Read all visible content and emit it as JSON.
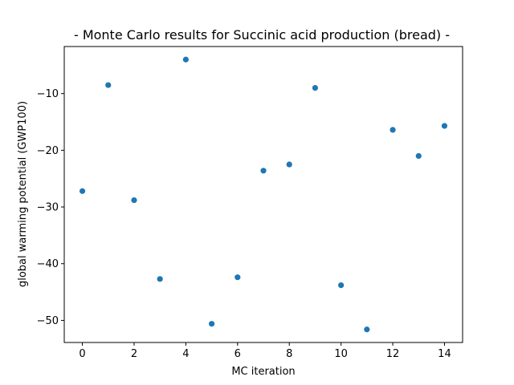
{
  "chart_data": {
    "type": "scatter",
    "title": "- Monte Carlo results for Succinic acid production (bread) -",
    "xlabel": "MC iteration",
    "ylabel": "global warming potential (GWP100)",
    "x": [
      0,
      1,
      2,
      3,
      4,
      5,
      6,
      7,
      8,
      9,
      10,
      11,
      12,
      13,
      14
    ],
    "y": [
      -27.2,
      -8.5,
      -28.8,
      -42.7,
      -4.0,
      -50.6,
      -42.4,
      -23.6,
      -22.5,
      -9.0,
      -43.8,
      -51.6,
      -16.4,
      -21.0,
      -15.7
    ],
    "xticks": [
      0,
      2,
      4,
      6,
      8,
      10,
      12,
      14
    ],
    "yticks": [
      -50,
      -40,
      -30,
      -20,
      -10
    ],
    "xlim": [
      -0.7,
      14.7
    ],
    "ylim": [
      -53.9,
      -1.7
    ],
    "grid": false,
    "marker_color": "#1f77b4"
  }
}
